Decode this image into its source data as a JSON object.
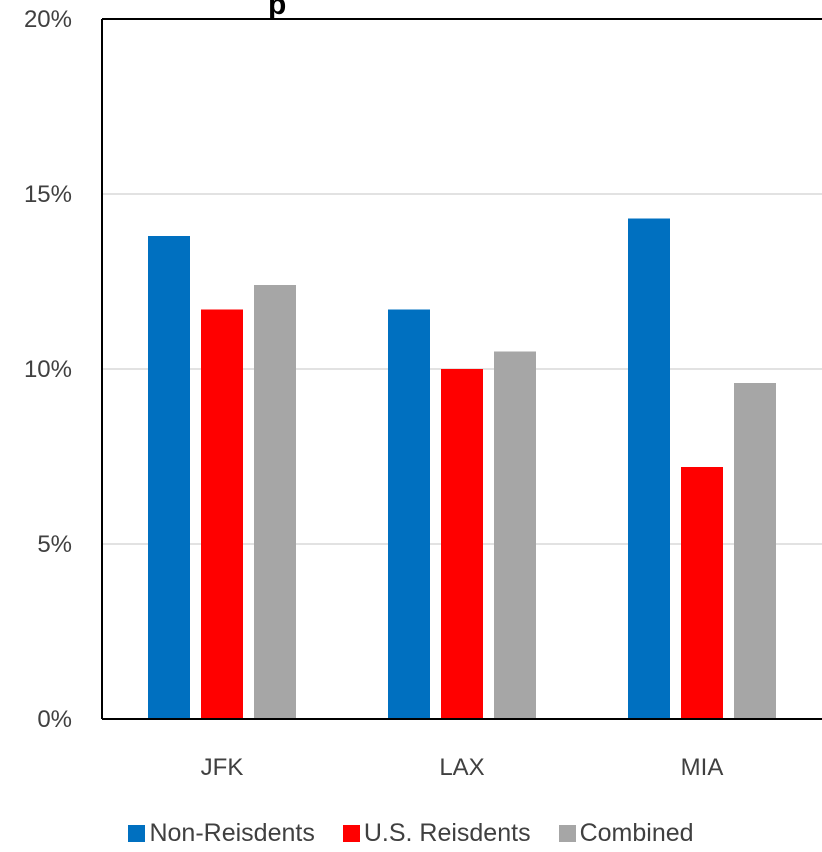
{
  "chart_data": {
    "type": "bar",
    "title_fragment": "p",
    "categories": [
      "JFK",
      "LAX",
      "MIA"
    ],
    "series": [
      {
        "name": "Non-Reisdents",
        "color": "#0070C0",
        "values": [
          13.8,
          11.7,
          14.3
        ]
      },
      {
        "name": "U.S. Reisdents",
        "color": "#FF0000",
        "values": [
          11.7,
          10.0,
          7.2
        ]
      },
      {
        "name": "Combined",
        "color": "#A6A6A6",
        "values": [
          12.4,
          10.5,
          9.6
        ]
      }
    ],
    "ylim": [
      0,
      20
    ],
    "y_ticks": [
      0,
      5,
      10,
      15,
      20
    ],
    "y_tick_labels": [
      "0%",
      "5%",
      "10%",
      "15%",
      "20%"
    ],
    "grid": true,
    "legend_position": "bottom"
  }
}
